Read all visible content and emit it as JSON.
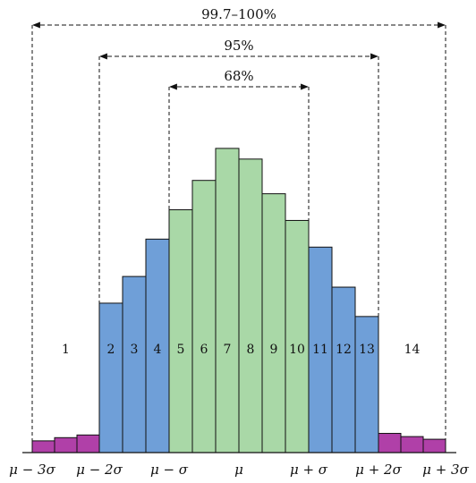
{
  "chart_data": {
    "type": "bar",
    "title": "",
    "xlabel": "",
    "ylabel": "",
    "categories": [
      "1",
      "2",
      "3",
      "4",
      "5",
      "6",
      "7",
      "8",
      "9",
      "10",
      "11",
      "12",
      "13",
      "14"
    ],
    "regions": [
      {
        "id": "1",
        "label": "1",
        "bars": [
          2.2,
          2.8,
          3.3
        ],
        "color": "#b040a8"
      },
      {
        "id": "2",
        "label": "2",
        "bars": [
          28
        ],
        "color": "#6f9fd8"
      },
      {
        "id": "3",
        "label": "3",
        "bars": [
          33
        ],
        "color": "#6f9fd8"
      },
      {
        "id": "4",
        "label": "4",
        "bars": [
          40
        ],
        "color": "#6f9fd8"
      },
      {
        "id": "5",
        "label": "5",
        "bars": [
          45.5
        ],
        "color": "#a9d8a7"
      },
      {
        "id": "6",
        "label": "6",
        "bars": [
          51
        ],
        "color": "#a9d8a7"
      },
      {
        "id": "7",
        "label": "7",
        "bars": [
          57
        ],
        "color": "#a9d8a7"
      },
      {
        "id": "8",
        "label": "8",
        "bars": [
          55
        ],
        "color": "#a9d8a7"
      },
      {
        "id": "9",
        "label": "9",
        "bars": [
          48.5
        ],
        "color": "#a9d8a7"
      },
      {
        "id": "10",
        "label": "10",
        "bars": [
          43.5
        ],
        "color": "#a9d8a7"
      },
      {
        "id": "11",
        "label": "11",
        "bars": [
          38.5
        ],
        "color": "#6f9fd8"
      },
      {
        "id": "12",
        "label": "12",
        "bars": [
          31
        ],
        "color": "#6f9fd8"
      },
      {
        "id": "13",
        "label": "13",
        "bars": [
          25.5
        ],
        "color": "#6f9fd8"
      },
      {
        "id": "14",
        "label": "14",
        "bars": [
          3.6,
          3.0,
          2.5
        ],
        "color": "#b040a8"
      }
    ],
    "ylim": [
      0,
      60
    ],
    "x_tick_labels": [
      "μ − 3σ",
      "μ − 2σ",
      "μ − σ",
      "μ",
      "μ + σ",
      "μ + 2σ",
      "μ + 3σ"
    ],
    "intervals": [
      {
        "label": "99.7–100%",
        "from": 0,
        "to": 6
      },
      {
        "label": "95%",
        "from": 1,
        "to": 5
      },
      {
        "label": "68%",
        "from": 2,
        "to": 4
      }
    ],
    "grid": false,
    "legend": "none"
  }
}
